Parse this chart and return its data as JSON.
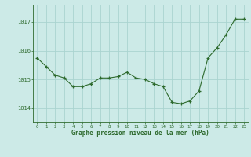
{
  "x": [
    0,
    1,
    2,
    3,
    4,
    5,
    6,
    7,
    8,
    9,
    10,
    11,
    12,
    13,
    14,
    15,
    16,
    17,
    18,
    19,
    20,
    21,
    22,
    23
  ],
  "y": [
    1015.75,
    1015.45,
    1015.15,
    1015.05,
    1014.75,
    1014.75,
    1014.85,
    1015.05,
    1015.05,
    1015.1,
    1015.25,
    1015.05,
    1015.0,
    1014.85,
    1014.75,
    1014.2,
    1014.15,
    1014.25,
    1014.6,
    1015.75,
    1016.1,
    1016.55,
    1017.1,
    1017.1
  ],
  "line_color": "#2d6a2d",
  "marker": "+",
  "marker_size": 3.5,
  "bg_color": "#cceae7",
  "grid_color": "#aad4d0",
  "xlabel": "Graphe pression niveau de la mer (hPa)",
  "xlabel_color": "#2d6a2d",
  "ylabel_ticks": [
    1014,
    1015,
    1016,
    1017
  ],
  "tick_color": "#2d6a2d",
  "ylim": [
    1013.5,
    1017.6
  ],
  "xlim": [
    -0.5,
    23.5
  ],
  "xticks": [
    0,
    1,
    2,
    3,
    4,
    5,
    6,
    7,
    8,
    9,
    10,
    11,
    12,
    13,
    14,
    15,
    16,
    17,
    18,
    19,
    20,
    21,
    22,
    23
  ]
}
